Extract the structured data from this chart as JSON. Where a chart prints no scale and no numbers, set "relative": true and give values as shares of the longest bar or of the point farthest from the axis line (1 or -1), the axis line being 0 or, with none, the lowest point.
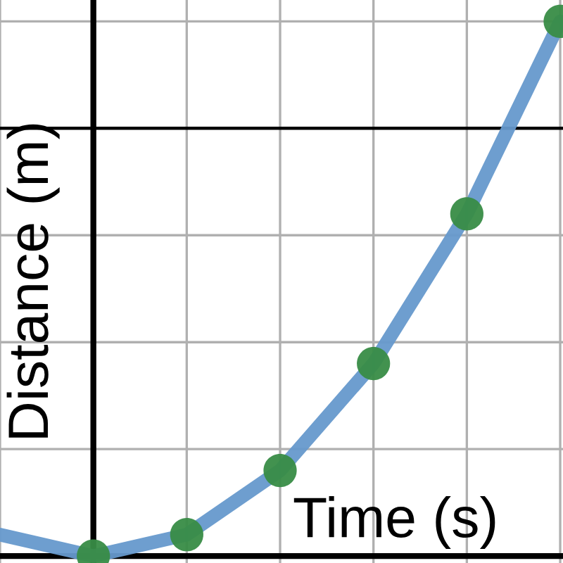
{
  "chart_data": {
    "type": "line",
    "xlabel": "Time (s)",
    "ylabel": "Distance (m)",
    "relative": true,
    "categories": [
      null,
      null,
      null,
      null,
      null,
      null,
      null
    ],
    "series": [
      {
        "color": "#6699cc",
        "colors": [
          null,
          "#388c46",
          "#388c46",
          "#388c46",
          "#388c46",
          "#388c46",
          "#388c46"
        ],
        "values": [
          0.04,
          0,
          0.04,
          0.16,
          0.36,
          0.64,
          1
        ]
      }
    ],
    "ref_lines": [
      {
        "axis": "y",
        "value": 0.8,
        "label": null,
        "color": "#000000"
      }
    ],
    "grid": true,
    "marker": "circle",
    "line_style": "solid",
    "tick_labels": false,
    "legend": false
  }
}
